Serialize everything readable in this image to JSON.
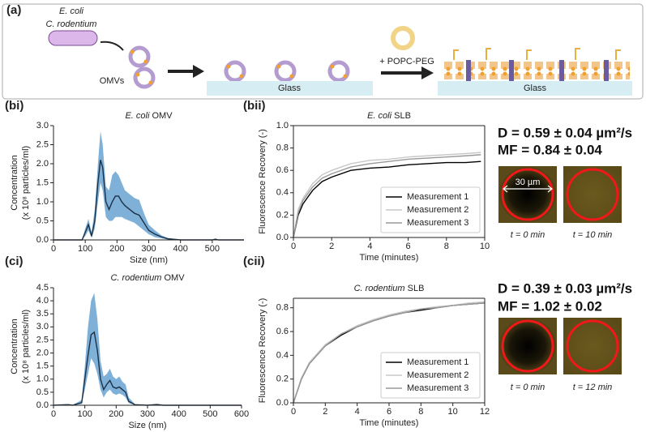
{
  "panel_a": {
    "label": "(a)",
    "bacteria": [
      "E. coli",
      "C. rodentium"
    ],
    "omvs": "OMVs",
    "glass_1": "Glass",
    "reagent": "+ POPC-PEG",
    "glass_2": "Glass"
  },
  "chart_data": [
    {
      "type": "line",
      "label": "(bi)",
      "title": [
        "E. coli",
        "OMV"
      ],
      "xlabel": "Size (nm)",
      "ylabel": [
        "Concentration",
        "(x 10⁸ particles/ml)"
      ],
      "box": false,
      "x": [
        0,
        90,
        100,
        110,
        120,
        130,
        140,
        148,
        155,
        165,
        175,
        185,
        195,
        205,
        215,
        225,
        240,
        255,
        270,
        285,
        300,
        320,
        340,
        360,
        400,
        500,
        510,
        520,
        600
      ],
      "series": [
        {
          "color": "#1c3047",
          "band_color": "#7fb1d8",
          "values": [
            0,
            0,
            0.2,
            0.4,
            0.1,
            0.5,
            1.5,
            2.1,
            1.9,
            1.0,
            0.8,
            1.0,
            1.15,
            1.15,
            1.0,
            0.9,
            0.8,
            0.7,
            0.65,
            0.45,
            0.25,
            0.15,
            0.08,
            0.03,
            0,
            0,
            0.02,
            0,
            0
          ],
          "upper": [
            0,
            0,
            0.3,
            0.55,
            0.2,
            0.8,
            2.0,
            2.85,
            2.5,
            1.4,
            1.3,
            1.7,
            1.8,
            1.7,
            1.5,
            1.3,
            1.2,
            1.1,
            1.05,
            0.7,
            0.4,
            0.25,
            0.12,
            0.05,
            0,
            0,
            0.03,
            0,
            0
          ],
          "lower": [
            0,
            0,
            0.1,
            0.25,
            0.05,
            0.3,
            1.0,
            1.5,
            1.3,
            0.6,
            0.5,
            0.5,
            0.6,
            0.6,
            0.6,
            0.55,
            0.5,
            0.45,
            0.35,
            0.25,
            0.15,
            0.07,
            0.04,
            0.01,
            0,
            0,
            0.01,
            0,
            0
          ]
        }
      ],
      "xlim": [
        0,
        600
      ],
      "xticks": [
        0,
        100,
        200,
        300,
        400,
        500
      ],
      "ylim": [
        0,
        3
      ],
      "yticks": [
        {
          "value": 0,
          "label": "0.0"
        },
        0.5,
        {
          "value": 1,
          "label": "1.0"
        },
        1.5,
        {
          "value": 2,
          "label": "2.0"
        },
        2.5,
        {
          "value": 3,
          "label": "3.0"
        }
      ]
    },
    {
      "type": "line",
      "label": "(bii)",
      "title": [
        "E. coli",
        "SLB"
      ],
      "xlabel": "Time (minutes)",
      "ylabel": "Fluorescence Recovery (-)",
      "box": true,
      "legend": "lower right",
      "x": [
        0,
        0.25,
        0.5,
        1,
        1.5,
        2,
        3,
        4,
        5,
        6,
        7,
        8,
        9,
        9.8
      ],
      "series": [
        {
          "name": "Measurement 1",
          "color": "#000000",
          "values": [
            0,
            0.2,
            0.3,
            0.42,
            0.5,
            0.54,
            0.6,
            0.62,
            0.63,
            0.65,
            0.66,
            0.67,
            0.67,
            0.68
          ]
        },
        {
          "name": "Measurement 2",
          "color": "#c8c8c8",
          "values": [
            0,
            0.25,
            0.35,
            0.48,
            0.56,
            0.6,
            0.66,
            0.69,
            0.7,
            0.72,
            0.73,
            0.74,
            0.75,
            0.76
          ]
        },
        {
          "name": "Measurement 3",
          "color": "#999999",
          "values": [
            0,
            0.22,
            0.33,
            0.45,
            0.53,
            0.57,
            0.63,
            0.66,
            0.68,
            0.7,
            0.71,
            0.72,
            0.73,
            0.74
          ]
        }
      ],
      "xlim": [
        0,
        10
      ],
      "xticks": [
        0,
        2,
        4,
        6,
        8,
        10
      ],
      "ylim": [
        0,
        1
      ],
      "yticks": [
        {
          "value": 0,
          "label": "0.0"
        },
        0.2,
        0.4,
        0.6,
        0.8,
        {
          "value": 1,
          "label": "1.0"
        }
      ]
    },
    {
      "type": "line",
      "label": "(ci)",
      "title": [
        "C. rodentium",
        "OMV"
      ],
      "xlabel": "Size (nm)",
      "ylabel": [
        "Concentration",
        "(x 10⁸ particles/ml)"
      ],
      "box": false,
      "x": [
        0,
        40,
        50,
        60,
        90,
        100,
        110,
        120,
        130,
        140,
        150,
        160,
        170,
        180,
        190,
        200,
        210,
        220,
        230,
        240,
        260,
        300,
        330,
        350,
        400,
        600
      ],
      "series": [
        {
          "color": "#1c3047",
          "band_color": "#7fb1d8",
          "values": [
            0,
            0.02,
            0.02,
            0,
            0.1,
            1.0,
            1.9,
            2.7,
            2.8,
            2.1,
            1.0,
            0.6,
            0.8,
            0.95,
            0.7,
            0.65,
            0.7,
            0.6,
            0.5,
            0.15,
            0.02,
            0,
            0.03,
            0,
            0,
            0
          ],
          "upper": [
            0,
            0.03,
            0.03,
            0,
            0.2,
            1.5,
            3.0,
            4.0,
            4.3,
            3.3,
            1.7,
            1.1,
            1.2,
            1.4,
            1.1,
            1.0,
            1.1,
            0.9,
            0.8,
            0.3,
            0.04,
            0,
            0.05,
            0,
            0,
            0
          ],
          "lower": [
            0,
            0.01,
            0.01,
            0,
            0.05,
            0.6,
            1.2,
            1.8,
            1.6,
            1.2,
            0.6,
            0.3,
            0.5,
            0.6,
            0.45,
            0.4,
            0.45,
            0.4,
            0.3,
            0.08,
            0.01,
            0,
            0.01,
            0,
            0,
            0
          ]
        }
      ],
      "xlim": [
        0,
        600
      ],
      "xticks": [
        0,
        100,
        200,
        300,
        400,
        500,
        600
      ],
      "ylim": [
        0,
        4.5
      ],
      "yticks": [
        {
          "value": 0,
          "label": "0.0"
        },
        0.5,
        {
          "value": 1,
          "label": "1.0"
        },
        1.5,
        {
          "value": 2,
          "label": "2.0"
        },
        2.5,
        {
          "value": 3,
          "label": "3.0"
        },
        3.5,
        {
          "value": 4,
          "label": "4.0"
        },
        4.5
      ]
    },
    {
      "type": "line",
      "label": "(cii)",
      "title": [
        "C. rodentium",
        "SLB"
      ],
      "xlabel": "Time (minutes)",
      "ylabel": "Fluorescence Recovery (-)",
      "box": true,
      "legend": "lower right",
      "x": [
        0,
        0.5,
        1,
        2,
        3,
        4,
        5,
        6,
        7,
        8,
        9,
        10,
        11,
        12
      ],
      "series": [
        {
          "name": "Measurement 1",
          "color": "#000000",
          "values": [
            0,
            0.2,
            0.33,
            0.48,
            0.57,
            0.64,
            0.69,
            0.73,
            0.76,
            0.78,
            0.8,
            0.82,
            0.83,
            0.84
          ]
        },
        {
          "name": "Measurement 2",
          "color": "#c8c8c8",
          "values": [
            0,
            0.21,
            0.34,
            0.49,
            0.58,
            0.65,
            0.7,
            0.74,
            0.77,
            0.79,
            0.81,
            0.82,
            0.84,
            0.85
          ]
        },
        {
          "name": "Measurement 3",
          "color": "#999999",
          "values": [
            0,
            0.2,
            0.33,
            0.48,
            0.58,
            0.64,
            0.69,
            0.73,
            0.76,
            0.79,
            0.8,
            0.82,
            0.83,
            0.84
          ]
        }
      ],
      "xlim": [
        0,
        12
      ],
      "xticks": [
        0,
        2,
        4,
        6,
        8,
        10,
        12
      ],
      "ylim": [
        0,
        0.88
      ],
      "yticks": [
        {
          "value": 0,
          "label": "0.0"
        },
        0.2,
        0.4,
        0.6,
        0.8
      ]
    }
  ],
  "results": [
    {
      "D": "D = 0.59 ± 0.04 µm²/s",
      "MF": "MF = 0.84 ± 0.04",
      "scale": "30 µm",
      "times": [
        "t = 0 min",
        "t = 10 min"
      ]
    },
    {
      "D": "D = 0.39 ± 0.03 µm²/s",
      "MF": "MF = 1.02 ± 0.02",
      "times": [
        "t = 0 min",
        "t = 12 min"
      ]
    }
  ]
}
